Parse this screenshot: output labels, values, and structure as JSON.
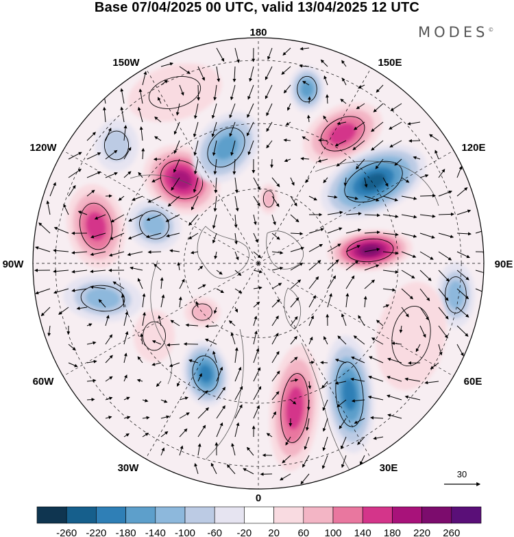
{
  "title": "Base 07/04/2025 00 UTC, valid 13/04/2025 12 UTC",
  "brand": "MODES",
  "brand_mark": "©",
  "longitudes": [
    "180",
    "150E",
    "120E",
    "90E",
    "60E",
    "30E",
    "0",
    "30W",
    "60W",
    "90W",
    "120W",
    "150W"
  ],
  "vector_scale": "30",
  "colorbar": {
    "ticks": [
      "-260",
      "-220",
      "-180",
      "-140",
      "-100",
      "-60",
      "-20",
      "20",
      "60",
      "100",
      "140",
      "180",
      "220",
      "260"
    ],
    "colors": [
      "#0f3550",
      "#165f8c",
      "#2f7fb6",
      "#5d9fcb",
      "#8db8dc",
      "#bccbe4",
      "#e6e4f1",
      "#ffffff",
      "#f9dbe1",
      "#f3b5c5",
      "#e9779f",
      "#d4358a",
      "#a8127a",
      "#7c0c6d",
      "#5a0f78"
    ]
  },
  "anomalies": [
    {
      "sign": 1,
      "level": 4
    },
    {
      "sign": 1,
      "level": 5
    },
    {
      "sign": 1,
      "level": 4
    },
    {
      "sign": 1,
      "level": 6
    },
    {
      "sign": 1,
      "level": 4
    },
    {
      "sign": 1,
      "level": 2
    },
    {
      "sign": 1,
      "level": 1
    },
    {
      "sign": 1,
      "level": 2
    },
    {
      "sign": -1,
      "level": 6
    },
    {
      "sign": -1,
      "level": 5
    },
    {
      "sign": -1,
      "level": 4
    },
    {
      "sign": -1,
      "level": 3
    },
    {
      "sign": -1,
      "level": 5
    },
    {
      "sign": -1,
      "level": 3
    },
    {
      "sign": -1,
      "level": 4
    },
    {
      "sign": -1,
      "level": 2
    },
    {
      "sign": -1,
      "level": 3
    },
    {
      "sign": 1,
      "level": 1
    },
    {
      "sign": 1,
      "level": 1
    }
  ]
}
